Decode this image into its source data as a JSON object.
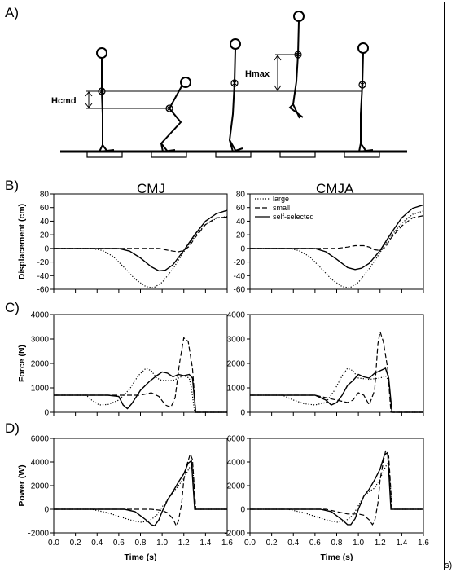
{
  "panels": {
    "a": "A)",
    "b": "B)",
    "c": "C)",
    "d": "D)"
  },
  "columns": [
    "CMJ",
    "CMJA"
  ],
  "diagram": {
    "hcmd_label": "Hcmd",
    "hmax_label": "Hmax"
  },
  "legend": [
    "large",
    "small",
    "self-selected"
  ],
  "stray_text": "s)",
  "chart_data": [
    {
      "type": "line",
      "name": "B-CMJ",
      "ylabel": "Displacement (cm)",
      "xlabel": "",
      "xlim": [
        0,
        1.6
      ],
      "ylim": [
        -60,
        80
      ],
      "yticks": [
        -60,
        -40,
        -20,
        0,
        20,
        40,
        60,
        80
      ],
      "xticks": [
        0.0,
        0.2,
        0.4,
        0.6,
        0.8,
        1.0,
        1.2,
        1.4,
        1.6
      ],
      "show_xtick_labels": false,
      "series": [
        {
          "style": "dotted",
          "x": [
            0,
            0.35,
            0.45,
            0.55,
            0.65,
            0.75,
            0.85,
            0.92,
            1.0,
            1.1,
            1.2,
            1.3,
            1.4,
            1.5,
            1.6
          ],
          "y": [
            0,
            0,
            -3,
            -12,
            -28,
            -45,
            -56,
            -58,
            -50,
            -30,
            -5,
            18,
            35,
            44,
            47
          ]
        },
        {
          "style": "dashed",
          "x": [
            0,
            0.9,
            0.97,
            1.03,
            1.1,
            1.15,
            1.2,
            1.25,
            1.3,
            1.4,
            1.5,
            1.6
          ],
          "y": [
            0,
            0,
            0,
            -2,
            -4,
            -5,
            -3,
            3,
            15,
            35,
            45,
            46
          ]
        },
        {
          "style": "solid",
          "x": [
            0,
            0.6,
            0.7,
            0.8,
            0.9,
            0.97,
            1.03,
            1.1,
            1.2,
            1.3,
            1.4,
            1.5,
            1.6
          ],
          "y": [
            0,
            0,
            -4,
            -14,
            -27,
            -33,
            -32,
            -24,
            -3,
            20,
            40,
            51,
            56
          ]
        }
      ]
    },
    {
      "type": "line",
      "name": "B-CMJA",
      "ylabel": "",
      "xlabel": "",
      "xlim": [
        0,
        1.6
      ],
      "ylim": [
        -60,
        80
      ],
      "yticks": [
        -60,
        -40,
        -20,
        0,
        20,
        40,
        60,
        80
      ],
      "xticks": [
        0.0,
        0.2,
        0.4,
        0.6,
        0.8,
        1.0,
        1.2,
        1.4,
        1.6
      ],
      "show_xtick_labels": false,
      "series": [
        {
          "style": "dotted",
          "x": [
            0,
            0.35,
            0.45,
            0.55,
            0.65,
            0.75,
            0.85,
            0.92,
            1.0,
            1.1,
            1.2,
            1.3,
            1.4,
            1.5,
            1.6
          ],
          "y": [
            0,
            0,
            -3,
            -12,
            -28,
            -45,
            -56,
            -58,
            -50,
            -30,
            -6,
            18,
            37,
            50,
            55
          ]
        },
        {
          "style": "dashed",
          "x": [
            0,
            0.8,
            0.9,
            0.97,
            1.05,
            1.1,
            1.15,
            1.2,
            1.25,
            1.3,
            1.4,
            1.5,
            1.6
          ],
          "y": [
            0,
            0,
            2,
            4,
            4,
            2,
            -2,
            -3,
            2,
            15,
            33,
            45,
            48
          ]
        },
        {
          "style": "solid",
          "x": [
            0,
            0.6,
            0.7,
            0.8,
            0.9,
            0.97,
            1.03,
            1.1,
            1.2,
            1.3,
            1.4,
            1.5,
            1.6
          ],
          "y": [
            0,
            0,
            -5,
            -16,
            -28,
            -31,
            -29,
            -22,
            -3,
            22,
            45,
            59,
            64
          ]
        }
      ]
    },
    {
      "type": "line",
      "name": "C-CMJ",
      "ylabel": "Force (N)",
      "xlabel": "",
      "xlim": [
        0,
        1.6
      ],
      "ylim": [
        0,
        4000
      ],
      "yticks": [
        0,
        1000,
        2000,
        3000,
        4000
      ],
      "xticks": [
        0.0,
        0.2,
        0.4,
        0.6,
        0.8,
        1.0,
        1.2,
        1.4,
        1.6
      ],
      "show_xtick_labels": false,
      "series": [
        {
          "style": "dotted",
          "x": [
            0,
            0.3,
            0.35,
            0.42,
            0.5,
            0.6,
            0.7,
            0.78,
            0.85,
            0.9,
            0.95,
            1.0,
            1.1,
            1.2,
            1.25,
            1.27,
            1.3,
            1.6
          ],
          "y": [
            700,
            700,
            500,
            300,
            320,
            500,
            950,
            1500,
            1800,
            1700,
            1400,
            1300,
            1300,
            1500,
            1400,
            1000,
            0,
            0
          ]
        },
        {
          "style": "dashed",
          "x": [
            0,
            0.7,
            0.8,
            0.9,
            0.97,
            1.03,
            1.08,
            1.12,
            1.16,
            1.2,
            1.24,
            1.28,
            1.31,
            1.6
          ],
          "y": [
            700,
            700,
            700,
            800,
            650,
            300,
            200,
            600,
            2000,
            3050,
            2900,
            1800,
            0,
            0
          ]
        },
        {
          "style": "solid",
          "x": [
            0,
            0.5,
            0.6,
            0.64,
            0.68,
            0.72,
            0.8,
            0.88,
            0.95,
            1.0,
            1.05,
            1.1,
            1.15,
            1.2,
            1.25,
            1.28,
            1.31,
            1.6
          ],
          "y": [
            700,
            700,
            650,
            300,
            150,
            350,
            900,
            1250,
            1500,
            1650,
            1600,
            1450,
            1550,
            1500,
            1550,
            1400,
            0,
            0
          ]
        }
      ]
    },
    {
      "type": "line",
      "name": "C-CMJA",
      "ylabel": "",
      "xlabel": "",
      "xlim": [
        0,
        1.6
      ],
      "ylim": [
        0,
        4000
      ],
      "yticks": [
        0,
        1000,
        2000,
        3000,
        4000
      ],
      "xticks": [
        0.0,
        0.2,
        0.4,
        0.6,
        0.8,
        1.0,
        1.2,
        1.4,
        1.6
      ],
      "show_xtick_labels": false,
      "series": [
        {
          "style": "dotted",
          "x": [
            0,
            0.3,
            0.4,
            0.5,
            0.6,
            0.7,
            0.78,
            0.85,
            0.9,
            0.95,
            1.0,
            1.1,
            1.2,
            1.25,
            1.28,
            1.31,
            1.6
          ],
          "y": [
            700,
            700,
            500,
            350,
            300,
            400,
            900,
            1500,
            1800,
            1700,
            1400,
            1350,
            1400,
            1500,
            1300,
            0,
            0
          ]
        },
        {
          "style": "dashed",
          "x": [
            0,
            0.6,
            0.7,
            0.8,
            0.9,
            0.95,
            1.0,
            1.05,
            1.1,
            1.15,
            1.18,
            1.2,
            1.23,
            1.27,
            1.3,
            1.6
          ],
          "y": [
            700,
            700,
            600,
            500,
            400,
            500,
            800,
            700,
            300,
            900,
            2800,
            3300,
            2900,
            1800,
            0,
            0
          ]
        },
        {
          "style": "solid",
          "x": [
            0,
            0.6,
            0.7,
            0.75,
            0.8,
            0.85,
            0.9,
            0.95,
            1.0,
            1.05,
            1.1,
            1.15,
            1.2,
            1.25,
            1.28,
            1.31,
            1.6
          ],
          "y": [
            700,
            700,
            500,
            300,
            400,
            700,
            1100,
            1300,
            1550,
            1450,
            1400,
            1600,
            1700,
            1800,
            1400,
            0,
            0
          ]
        }
      ]
    },
    {
      "type": "line",
      "name": "D-CMJ",
      "ylabel": "Power (W)",
      "xlabel": "Time (s)",
      "xlim": [
        0,
        1.6
      ],
      "ylim": [
        -2000,
        6000
      ],
      "yticks": [
        -2000,
        0,
        2000,
        4000,
        6000
      ],
      "xticks": [
        0.0,
        0.2,
        0.4,
        0.6,
        0.8,
        1.0,
        1.2,
        1.4,
        1.6
      ],
      "show_xtick_labels": true,
      "series": [
        {
          "style": "dotted",
          "x": [
            0,
            0.35,
            0.5,
            0.6,
            0.7,
            0.8,
            0.88,
            0.95,
            1.0,
            1.05,
            1.1,
            1.15,
            1.2,
            1.25,
            1.28,
            1.31,
            1.6
          ],
          "y": [
            0,
            0,
            -300,
            -600,
            -900,
            -1100,
            -1000,
            -500,
            200,
            800,
            1400,
            2000,
            2600,
            3500,
            3800,
            0,
            0
          ]
        },
        {
          "style": "dashed",
          "x": [
            0,
            0.9,
            1.0,
            1.05,
            1.1,
            1.13,
            1.15,
            1.18,
            1.2,
            1.23,
            1.26,
            1.28,
            1.31,
            1.6
          ],
          "y": [
            0,
            0,
            -100,
            -300,
            -800,
            -1400,
            -1000,
            500,
            2500,
            3800,
            4700,
            4200,
            0,
            0
          ]
        },
        {
          "style": "solid",
          "x": [
            0,
            0.65,
            0.75,
            0.85,
            0.9,
            0.93,
            0.97,
            1.0,
            1.05,
            1.1,
            1.15,
            1.2,
            1.24,
            1.27,
            1.3,
            1.6
          ],
          "y": [
            0,
            0,
            -200,
            -900,
            -1300,
            -1400,
            -900,
            -200,
            800,
            1500,
            2300,
            3000,
            3900,
            4100,
            0,
            0
          ]
        }
      ]
    },
    {
      "type": "line",
      "name": "D-CMJA",
      "ylabel": "",
      "xlabel": "Time (s)",
      "xlim": [
        0,
        1.6
      ],
      "ylim": [
        -2000,
        6000
      ],
      "yticks": [
        -2000,
        0,
        2000,
        4000,
        6000
      ],
      "xticks": [
        0.0,
        0.2,
        0.4,
        0.6,
        0.8,
        1.0,
        1.2,
        1.4,
        1.6
      ],
      "show_xtick_labels": true,
      "series": [
        {
          "style": "dotted",
          "x": [
            0,
            0.35,
            0.5,
            0.6,
            0.7,
            0.8,
            0.88,
            0.95,
            1.0,
            1.05,
            1.1,
            1.15,
            1.2,
            1.25,
            1.28,
            1.31,
            1.6
          ],
          "y": [
            0,
            0,
            -300,
            -600,
            -900,
            -1100,
            -1000,
            -500,
            300,
            1100,
            1500,
            1800,
            2600,
            3600,
            4000,
            0,
            0
          ]
        },
        {
          "style": "dashed",
          "x": [
            0,
            0.7,
            0.8,
            0.9,
            1.0,
            1.05,
            1.1,
            1.13,
            1.15,
            1.18,
            1.2,
            1.23,
            1.25,
            1.28,
            1.31,
            1.6
          ],
          "y": [
            0,
            0,
            -200,
            -400,
            -400,
            -500,
            -900,
            -1300,
            -1000,
            500,
            2500,
            4000,
            4900,
            4500,
            0,
            0
          ]
        },
        {
          "style": "solid",
          "x": [
            0,
            0.65,
            0.75,
            0.85,
            0.9,
            0.93,
            0.97,
            1.0,
            1.05,
            1.1,
            1.15,
            1.2,
            1.24,
            1.27,
            1.3,
            1.6
          ],
          "y": [
            0,
            0,
            -200,
            -900,
            -1300,
            -1300,
            -800,
            0,
            1100,
            1700,
            2500,
            3400,
            4600,
            4800,
            0,
            0
          ]
        }
      ]
    }
  ]
}
